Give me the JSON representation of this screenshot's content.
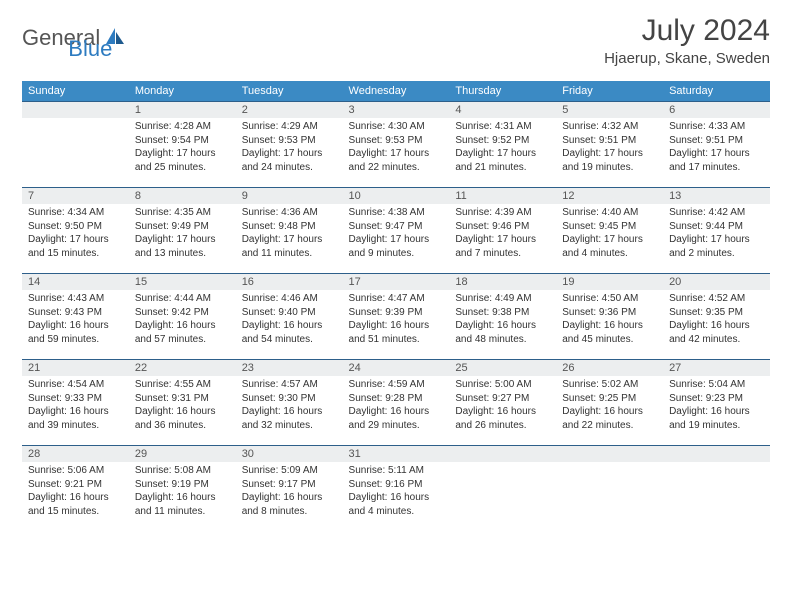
{
  "logo": {
    "text1": "General",
    "text2": "Blue",
    "icon_color": "#2d7bc0"
  },
  "title": "July 2024",
  "location": "Hjaerup, Skane, Sweden",
  "colors": {
    "header_bg": "#3b8ac4",
    "header_text": "#ffffff",
    "daynum_bg": "#eceeef",
    "daynum_border": "#2d5f8a",
    "text": "#333333"
  },
  "weekdays": [
    "Sunday",
    "Monday",
    "Tuesday",
    "Wednesday",
    "Thursday",
    "Friday",
    "Saturday"
  ],
  "weeks": [
    [
      null,
      {
        "n": "1",
        "sr": "4:28 AM",
        "ss": "9:54 PM",
        "dl": "17 hours and 25 minutes."
      },
      {
        "n": "2",
        "sr": "4:29 AM",
        "ss": "9:53 PM",
        "dl": "17 hours and 24 minutes."
      },
      {
        "n": "3",
        "sr": "4:30 AM",
        "ss": "9:53 PM",
        "dl": "17 hours and 22 minutes."
      },
      {
        "n": "4",
        "sr": "4:31 AM",
        "ss": "9:52 PM",
        "dl": "17 hours and 21 minutes."
      },
      {
        "n": "5",
        "sr": "4:32 AM",
        "ss": "9:51 PM",
        "dl": "17 hours and 19 minutes."
      },
      {
        "n": "6",
        "sr": "4:33 AM",
        "ss": "9:51 PM",
        "dl": "17 hours and 17 minutes."
      }
    ],
    [
      {
        "n": "7",
        "sr": "4:34 AM",
        "ss": "9:50 PM",
        "dl": "17 hours and 15 minutes."
      },
      {
        "n": "8",
        "sr": "4:35 AM",
        "ss": "9:49 PM",
        "dl": "17 hours and 13 minutes."
      },
      {
        "n": "9",
        "sr": "4:36 AM",
        "ss": "9:48 PM",
        "dl": "17 hours and 11 minutes."
      },
      {
        "n": "10",
        "sr": "4:38 AM",
        "ss": "9:47 PM",
        "dl": "17 hours and 9 minutes."
      },
      {
        "n": "11",
        "sr": "4:39 AM",
        "ss": "9:46 PM",
        "dl": "17 hours and 7 minutes."
      },
      {
        "n": "12",
        "sr": "4:40 AM",
        "ss": "9:45 PM",
        "dl": "17 hours and 4 minutes."
      },
      {
        "n": "13",
        "sr": "4:42 AM",
        "ss": "9:44 PM",
        "dl": "17 hours and 2 minutes."
      }
    ],
    [
      {
        "n": "14",
        "sr": "4:43 AM",
        "ss": "9:43 PM",
        "dl": "16 hours and 59 minutes."
      },
      {
        "n": "15",
        "sr": "4:44 AM",
        "ss": "9:42 PM",
        "dl": "16 hours and 57 minutes."
      },
      {
        "n": "16",
        "sr": "4:46 AM",
        "ss": "9:40 PM",
        "dl": "16 hours and 54 minutes."
      },
      {
        "n": "17",
        "sr": "4:47 AM",
        "ss": "9:39 PM",
        "dl": "16 hours and 51 minutes."
      },
      {
        "n": "18",
        "sr": "4:49 AM",
        "ss": "9:38 PM",
        "dl": "16 hours and 48 minutes."
      },
      {
        "n": "19",
        "sr": "4:50 AM",
        "ss": "9:36 PM",
        "dl": "16 hours and 45 minutes."
      },
      {
        "n": "20",
        "sr": "4:52 AM",
        "ss": "9:35 PM",
        "dl": "16 hours and 42 minutes."
      }
    ],
    [
      {
        "n": "21",
        "sr": "4:54 AM",
        "ss": "9:33 PM",
        "dl": "16 hours and 39 minutes."
      },
      {
        "n": "22",
        "sr": "4:55 AM",
        "ss": "9:31 PM",
        "dl": "16 hours and 36 minutes."
      },
      {
        "n": "23",
        "sr": "4:57 AM",
        "ss": "9:30 PM",
        "dl": "16 hours and 32 minutes."
      },
      {
        "n": "24",
        "sr": "4:59 AM",
        "ss": "9:28 PM",
        "dl": "16 hours and 29 minutes."
      },
      {
        "n": "25",
        "sr": "5:00 AM",
        "ss": "9:27 PM",
        "dl": "16 hours and 26 minutes."
      },
      {
        "n": "26",
        "sr": "5:02 AM",
        "ss": "9:25 PM",
        "dl": "16 hours and 22 minutes."
      },
      {
        "n": "27",
        "sr": "5:04 AM",
        "ss": "9:23 PM",
        "dl": "16 hours and 19 minutes."
      }
    ],
    [
      {
        "n": "28",
        "sr": "5:06 AM",
        "ss": "9:21 PM",
        "dl": "16 hours and 15 minutes."
      },
      {
        "n": "29",
        "sr": "5:08 AM",
        "ss": "9:19 PM",
        "dl": "16 hours and 11 minutes."
      },
      {
        "n": "30",
        "sr": "5:09 AM",
        "ss": "9:17 PM",
        "dl": "16 hours and 8 minutes."
      },
      {
        "n": "31",
        "sr": "5:11 AM",
        "ss": "9:16 PM",
        "dl": "16 hours and 4 minutes."
      },
      null,
      null,
      null
    ]
  ]
}
